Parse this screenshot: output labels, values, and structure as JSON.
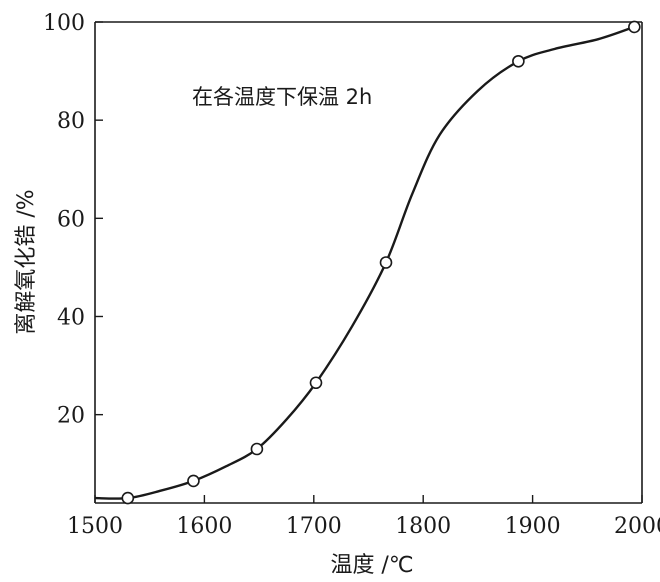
{
  "chart_data": {
    "type": "line",
    "title": "",
    "annotation": "在各温度下保温 2h",
    "xlabel": "温度 /℃",
    "ylabel": "离解氧化锆 /%",
    "xlim": [
      1500,
      2000
    ],
    "ylim": [
      2,
      100
    ],
    "x_ticks": [
      1500,
      1600,
      1700,
      1800,
      1900,
      2000
    ],
    "y_ticks": [
      20,
      40,
      60,
      80,
      100
    ],
    "grid": false,
    "legend": "none",
    "line_color": "#1a1a1a",
    "series": [
      {
        "points": [
          {
            "x": 1530,
            "y": 3
          },
          {
            "x": 1590,
            "y": 6.5
          },
          {
            "x": 1648,
            "y": 13
          },
          {
            "x": 1702,
            "y": 26.5
          },
          {
            "x": 1766,
            "y": 51
          },
          {
            "x": 1887,
            "y": 92
          },
          {
            "x": 1993,
            "y": 99
          }
        ]
      }
    ],
    "curve": [
      [
        1500,
        3
      ],
      [
        1530,
        3
      ],
      [
        1560,
        4.5
      ],
      [
        1590,
        6.5
      ],
      [
        1620,
        9.5
      ],
      [
        1648,
        13
      ],
      [
        1675,
        19
      ],
      [
        1702,
        26.5
      ],
      [
        1735,
        38
      ],
      [
        1766,
        51
      ],
      [
        1790,
        65
      ],
      [
        1815,
        77
      ],
      [
        1850,
        86
      ],
      [
        1887,
        92
      ],
      [
        1920,
        94.5
      ],
      [
        1960,
        96.5
      ],
      [
        1993,
        99
      ]
    ]
  }
}
